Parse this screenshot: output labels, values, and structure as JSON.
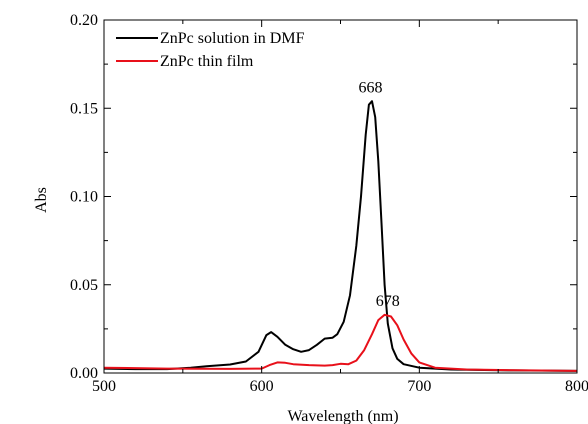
{
  "chart_data": {
    "type": "line",
    "xlabel": "Wavelength (nm)",
    "ylabel": "Abs",
    "xlim": [
      500,
      800
    ],
    "ylim": [
      0,
      0.2
    ],
    "x_ticks": [
      "500",
      "600",
      "700",
      "800"
    ],
    "y_ticks": [
      "0.00",
      "0.05",
      "0.10",
      "0.15",
      "0.20"
    ],
    "grid": false,
    "legend_position": "top-left",
    "series": [
      {
        "name": "ZnPc solution in DMF",
        "color": "#000000",
        "points": [
          [
            500,
            0.0025
          ],
          [
            520,
            0.0022
          ],
          [
            540,
            0.0022
          ],
          [
            555,
            0.003
          ],
          [
            565,
            0.0038
          ],
          [
            580,
            0.0048
          ],
          [
            590,
            0.0065
          ],
          [
            598,
            0.012
          ],
          [
            603,
            0.0215
          ],
          [
            606,
            0.0232
          ],
          [
            610,
            0.0205
          ],
          [
            615,
            0.016
          ],
          [
            620,
            0.0135
          ],
          [
            625,
            0.012
          ],
          [
            630,
            0.013
          ],
          [
            635,
            0.016
          ],
          [
            640,
            0.0195
          ],
          [
            645,
            0.02
          ],
          [
            648,
            0.022
          ],
          [
            652,
            0.029
          ],
          [
            656,
            0.044
          ],
          [
            660,
            0.072
          ],
          [
            663,
            0.1
          ],
          [
            666,
            0.135
          ],
          [
            668,
            0.152
          ],
          [
            670,
            0.154
          ],
          [
            672,
            0.145
          ],
          [
            674,
            0.12
          ],
          [
            676,
            0.085
          ],
          [
            678,
            0.05
          ],
          [
            680,
            0.028
          ],
          [
            683,
            0.014
          ],
          [
            686,
            0.008
          ],
          [
            690,
            0.005
          ],
          [
            700,
            0.003
          ],
          [
            720,
            0.002
          ],
          [
            760,
            0.0015
          ],
          [
            800,
            0.0012
          ]
        ]
      },
      {
        "name": "ZnPc thin film",
        "color": "#e8101a",
        "points": [
          [
            500,
            0.003
          ],
          [
            540,
            0.0025
          ],
          [
            580,
            0.0023
          ],
          [
            600,
            0.0025
          ],
          [
            605,
            0.0045
          ],
          [
            610,
            0.006
          ],
          [
            615,
            0.0058
          ],
          [
            620,
            0.005
          ],
          [
            630,
            0.0045
          ],
          [
            640,
            0.0042
          ],
          [
            645,
            0.0045
          ],
          [
            650,
            0.0052
          ],
          [
            655,
            0.005
          ],
          [
            660,
            0.007
          ],
          [
            665,
            0.013
          ],
          [
            670,
            0.022
          ],
          [
            674,
            0.03
          ],
          [
            678,
            0.033
          ],
          [
            682,
            0.032
          ],
          [
            686,
            0.027
          ],
          [
            690,
            0.019
          ],
          [
            695,
            0.011
          ],
          [
            700,
            0.006
          ],
          [
            710,
            0.003
          ],
          [
            730,
            0.002
          ],
          [
            770,
            0.0015
          ],
          [
            800,
            0.0012
          ]
        ]
      }
    ],
    "annotations": [
      {
        "text": "668",
        "x": 669,
        "y": 0.1545
      },
      {
        "text": "678",
        "x": 680,
        "y": 0.0335
      }
    ]
  }
}
